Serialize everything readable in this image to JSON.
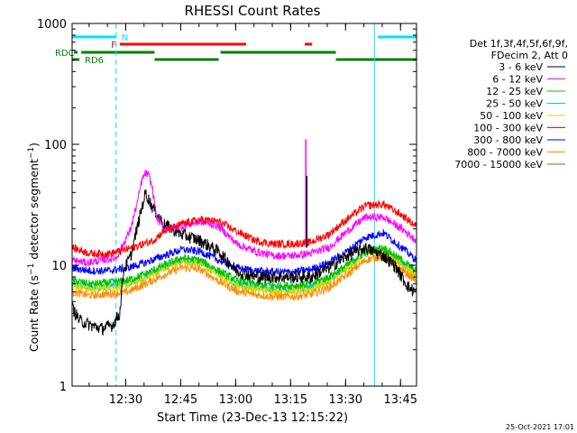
{
  "chart_data": {
    "type": "line",
    "title": "RHESSI Count Rates",
    "xlabel": "Start Time (23-Dec-13 12:15:22)",
    "ylabel": "Count Rate (s⁻¹ detector segment⁻¹)",
    "y_scale": "log",
    "ylim": [
      1,
      1000
    ],
    "xlim_minutes_after_start": [
      0,
      94
    ],
    "x_tick_labels": [
      "12:30",
      "12:45",
      "13:00",
      "13:15",
      "13:30",
      "13:45"
    ],
    "y_tick_labels": [
      "1",
      "10",
      "100",
      "1000"
    ],
    "legend_header": [
      "Det 1f,3f,4f,5f,6f,9f,",
      "FDecim 2, Att 0"
    ],
    "legend_placement": "right",
    "footer_timestamp": "25-Oct-2021 17:01",
    "series": [
      {
        "name": "3 - 6 keV",
        "color": "#000000",
        "x": [
          0,
          2,
          5,
          8,
          11,
          13,
          14,
          16,
          18,
          20,
          22,
          25,
          30,
          35,
          40,
          45,
          50,
          55,
          60,
          65,
          70,
          75,
          80,
          85,
          88,
          90,
          92,
          94
        ],
        "y": [
          4.5,
          3.5,
          3.2,
          3.0,
          3.2,
          4,
          9,
          12,
          22,
          40,
          30,
          22,
          18,
          16,
          13,
          9,
          8,
          8,
          8,
          8,
          9.5,
          12,
          14,
          12,
          10,
          8,
          6.5,
          6
        ]
      },
      {
        "name": "6 - 12 keV",
        "color": "#ff00ff",
        "x": [
          0,
          4,
          8,
          12,
          14,
          16,
          18,
          19,
          20,
          21,
          22,
          23,
          25,
          30,
          35,
          40,
          45,
          50,
          55,
          60,
          65,
          70,
          75,
          80,
          85,
          90,
          94
        ],
        "y": [
          11,
          10.5,
          11,
          11.5,
          15,
          20,
          35,
          50,
          58,
          55,
          42,
          25,
          20,
          21,
          23,
          21,
          15,
          13,
          12,
          12,
          12.5,
          14,
          19,
          25,
          25,
          20,
          16
        ]
      },
      {
        "name": "12 - 25 keV",
        "color": "#00c000",
        "x": [
          0,
          5,
          10,
          15,
          20,
          25,
          30,
          35,
          40,
          45,
          50,
          55,
          60,
          65,
          70,
          75,
          80,
          85,
          90,
          94
        ],
        "y": [
          7.5,
          7,
          7.2,
          7.5,
          8.5,
          10,
          11.5,
          11,
          9,
          7.5,
          7,
          6.8,
          6.8,
          7,
          8,
          10,
          13,
          14,
          11,
          9
        ]
      },
      {
        "name": "25 - 50 keV",
        "color": "#00c8c8",
        "x": [
          0,
          5,
          10,
          15,
          20,
          25,
          30,
          35,
          40,
          45,
          50,
          55,
          60,
          65,
          70,
          75,
          80,
          85,
          90,
          94
        ],
        "y": [
          7,
          6.5,
          6.7,
          7,
          8,
          9.5,
          11,
          10.5,
          8.5,
          7,
          6.5,
          6.3,
          6.3,
          6.5,
          7.5,
          9.5,
          12.5,
          13.5,
          10.5,
          8.5
        ]
      },
      {
        "name": "50 - 100 keV",
        "color": "#d8d800",
        "x": [
          0,
          5,
          10,
          15,
          20,
          25,
          30,
          35,
          40,
          45,
          50,
          55,
          60,
          65,
          70,
          75,
          80,
          85,
          90,
          94
        ],
        "y": [
          6.8,
          6.3,
          6.5,
          6.8,
          7.8,
          9.3,
          10.8,
          10.3,
          8.3,
          6.8,
          6.3,
          6.1,
          6.1,
          6.3,
          7.3,
          9.3,
          12.3,
          13.3,
          10.3,
          8.3
        ]
      },
      {
        "name": "100 - 300 keV",
        "color": "#ff0000",
        "x": [
          0,
          5,
          10,
          13,
          18,
          22,
          25,
          30,
          35,
          40,
          45,
          50,
          55,
          60,
          65,
          70,
          75,
          80,
          85,
          90,
          94
        ],
        "y": [
          14,
          12.5,
          12.5,
          13,
          14.5,
          16,
          19,
          22,
          24,
          23,
          19,
          16,
          15,
          15,
          15.5,
          18,
          24,
          31,
          32,
          26,
          21
        ]
      },
      {
        "name": "300 - 800 keV",
        "color": "#0000ff",
        "x": [
          0,
          5,
          10,
          15,
          20,
          25,
          30,
          35,
          40,
          45,
          50,
          55,
          60,
          65,
          70,
          75,
          80,
          85,
          90,
          94
        ],
        "y": [
          9.5,
          9,
          9,
          9.5,
          10.5,
          12,
          13.5,
          13,
          11,
          9.5,
          9,
          8.8,
          8.8,
          9.2,
          10.5,
          13,
          17,
          18.5,
          14,
          11
        ]
      },
      {
        "name": "800 - 7000 keV",
        "color": "#ff8c00",
        "x": [
          0,
          5,
          10,
          15,
          20,
          25,
          30,
          35,
          40,
          45,
          50,
          55,
          60,
          65,
          70,
          75,
          80,
          85,
          90,
          94
        ],
        "y": [
          6,
          5.6,
          5.8,
          6,
          7,
          8.3,
          9.6,
          9.2,
          7.4,
          6.1,
          5.7,
          5.5,
          5.5,
          5.7,
          6.5,
          8.3,
          11,
          12,
          9.2,
          7.4
        ]
      },
      {
        "name": "7000 - 15000 keV",
        "color": "#8b6914",
        "x": [],
        "y": []
      }
    ],
    "flags": [
      {
        "label": "N",
        "color": "#00e0ff",
        "label_color": "#00e0ff",
        "row": 0,
        "segments": [
          [
            0,
            12
          ],
          [
            83.5,
            94
          ]
        ]
      },
      {
        "label": "F",
        "color": "#ff0000",
        "label_color": "#ff0000",
        "row": 1,
        "segments": [
          [
            13,
            47.5
          ],
          [
            63.5,
            65.5
          ]
        ]
      },
      {
        "label": "RDC",
        "color": "#008000",
        "label_color": "#008000",
        "row": 2,
        "segments": [
          [
            0.5,
            1.5
          ],
          [
            2.5,
            22.5
          ],
          [
            40.5,
            72
          ]
        ]
      },
      {
        "label": "RD6",
        "color": "#008000",
        "label_color": "#008000",
        "row": 3,
        "segments": [
          [
            0,
            2
          ],
          [
            22.5,
            40
          ],
          [
            72,
            94
          ]
        ]
      }
    ],
    "vertical_markers": [
      {
        "x": 0,
        "style": "solid",
        "color": "#00e0ff"
      },
      {
        "x": 12,
        "style": "dashed",
        "color": "#00e0ff"
      },
      {
        "x": 82.5,
        "style": "solid",
        "color": "#00e0ff"
      },
      {
        "x": 94,
        "style": "dashed",
        "color": "#00e0ff"
      }
    ],
    "spike": {
      "x": 63.8,
      "y_peak": 110,
      "color": "#ff00ff"
    }
  }
}
